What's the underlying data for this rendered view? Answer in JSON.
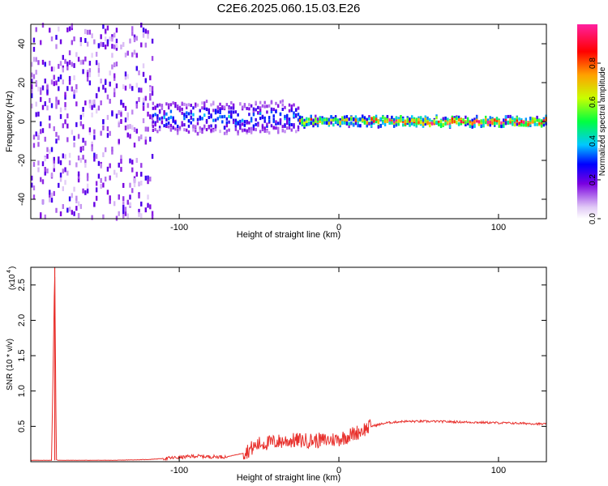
{
  "title": "C2E6.2025.060.15.03.E26",
  "chart_data": [
    {
      "type": "heatmap",
      "xlabel": "Height of straight line (km)",
      "ylabel": "Frequency (Hz)",
      "xlim": [
        -193,
        130
      ],
      "ylim": [
        -50,
        50
      ],
      "xticks": [
        "-100",
        "0",
        "100"
      ],
      "yticks": [
        "-40",
        "-20",
        "0",
        "20",
        "40"
      ],
      "colorbar": {
        "label": "Normalized spectral amplitude",
        "range": [
          0,
          1
        ],
        "ticks": [
          "0.0",
          "0.2",
          "0.4",
          "0.6",
          "0.8"
        ]
      },
      "regions": [
        {
          "x": [
            -193,
            -117
          ],
          "freq_spread": 50,
          "amplitude": 0.15,
          "note": "broadband noise"
        },
        {
          "x": [
            -117,
            -25
          ],
          "freq_center": 2,
          "freq_spread": 8,
          "amplitude": 0.35
        },
        {
          "x": [
            -25,
            20
          ],
          "freq_center": 0,
          "freq_spread": 2,
          "amplitude": 0.8
        },
        {
          "x": [
            20,
            130
          ],
          "freq_center": 0,
          "freq_spread": 2,
          "amplitude": 0.95
        }
      ]
    },
    {
      "type": "line",
      "xlabel": "Height of straight line (km)",
      "ylabel": "SNR (10 * v/v)",
      "yscale_label": "(x10",
      "yscale_exp": "4",
      "xlim": [
        -193,
        130
      ],
      "ylim": [
        0,
        2.75
      ],
      "xticks": [
        "-100",
        "0",
        "100"
      ],
      "yticks": [
        "0.5",
        "1.0",
        "1.5",
        "2.0",
        "2.5"
      ],
      "series": [
        {
          "color": "#e8302c",
          "x": [
            -193,
            -180,
            -178,
            -177,
            -176,
            -160,
            -140,
            -120,
            -100,
            -90,
            -80,
            -70,
            -60,
            -50,
            -40,
            -30,
            -20,
            -10,
            0,
            10,
            20,
            30,
            40,
            60,
            80,
            100,
            120,
            130
          ],
          "y": [
            0.02,
            0.02,
            2.75,
            0.03,
            0.02,
            0.02,
            0.02,
            0.03,
            0.06,
            0.08,
            0.07,
            0.07,
            0.12,
            0.25,
            0.28,
            0.3,
            0.3,
            0.3,
            0.32,
            0.4,
            0.5,
            0.55,
            0.57,
            0.57,
            0.56,
            0.55,
            0.54,
            0.53
          ]
        }
      ]
    }
  ]
}
